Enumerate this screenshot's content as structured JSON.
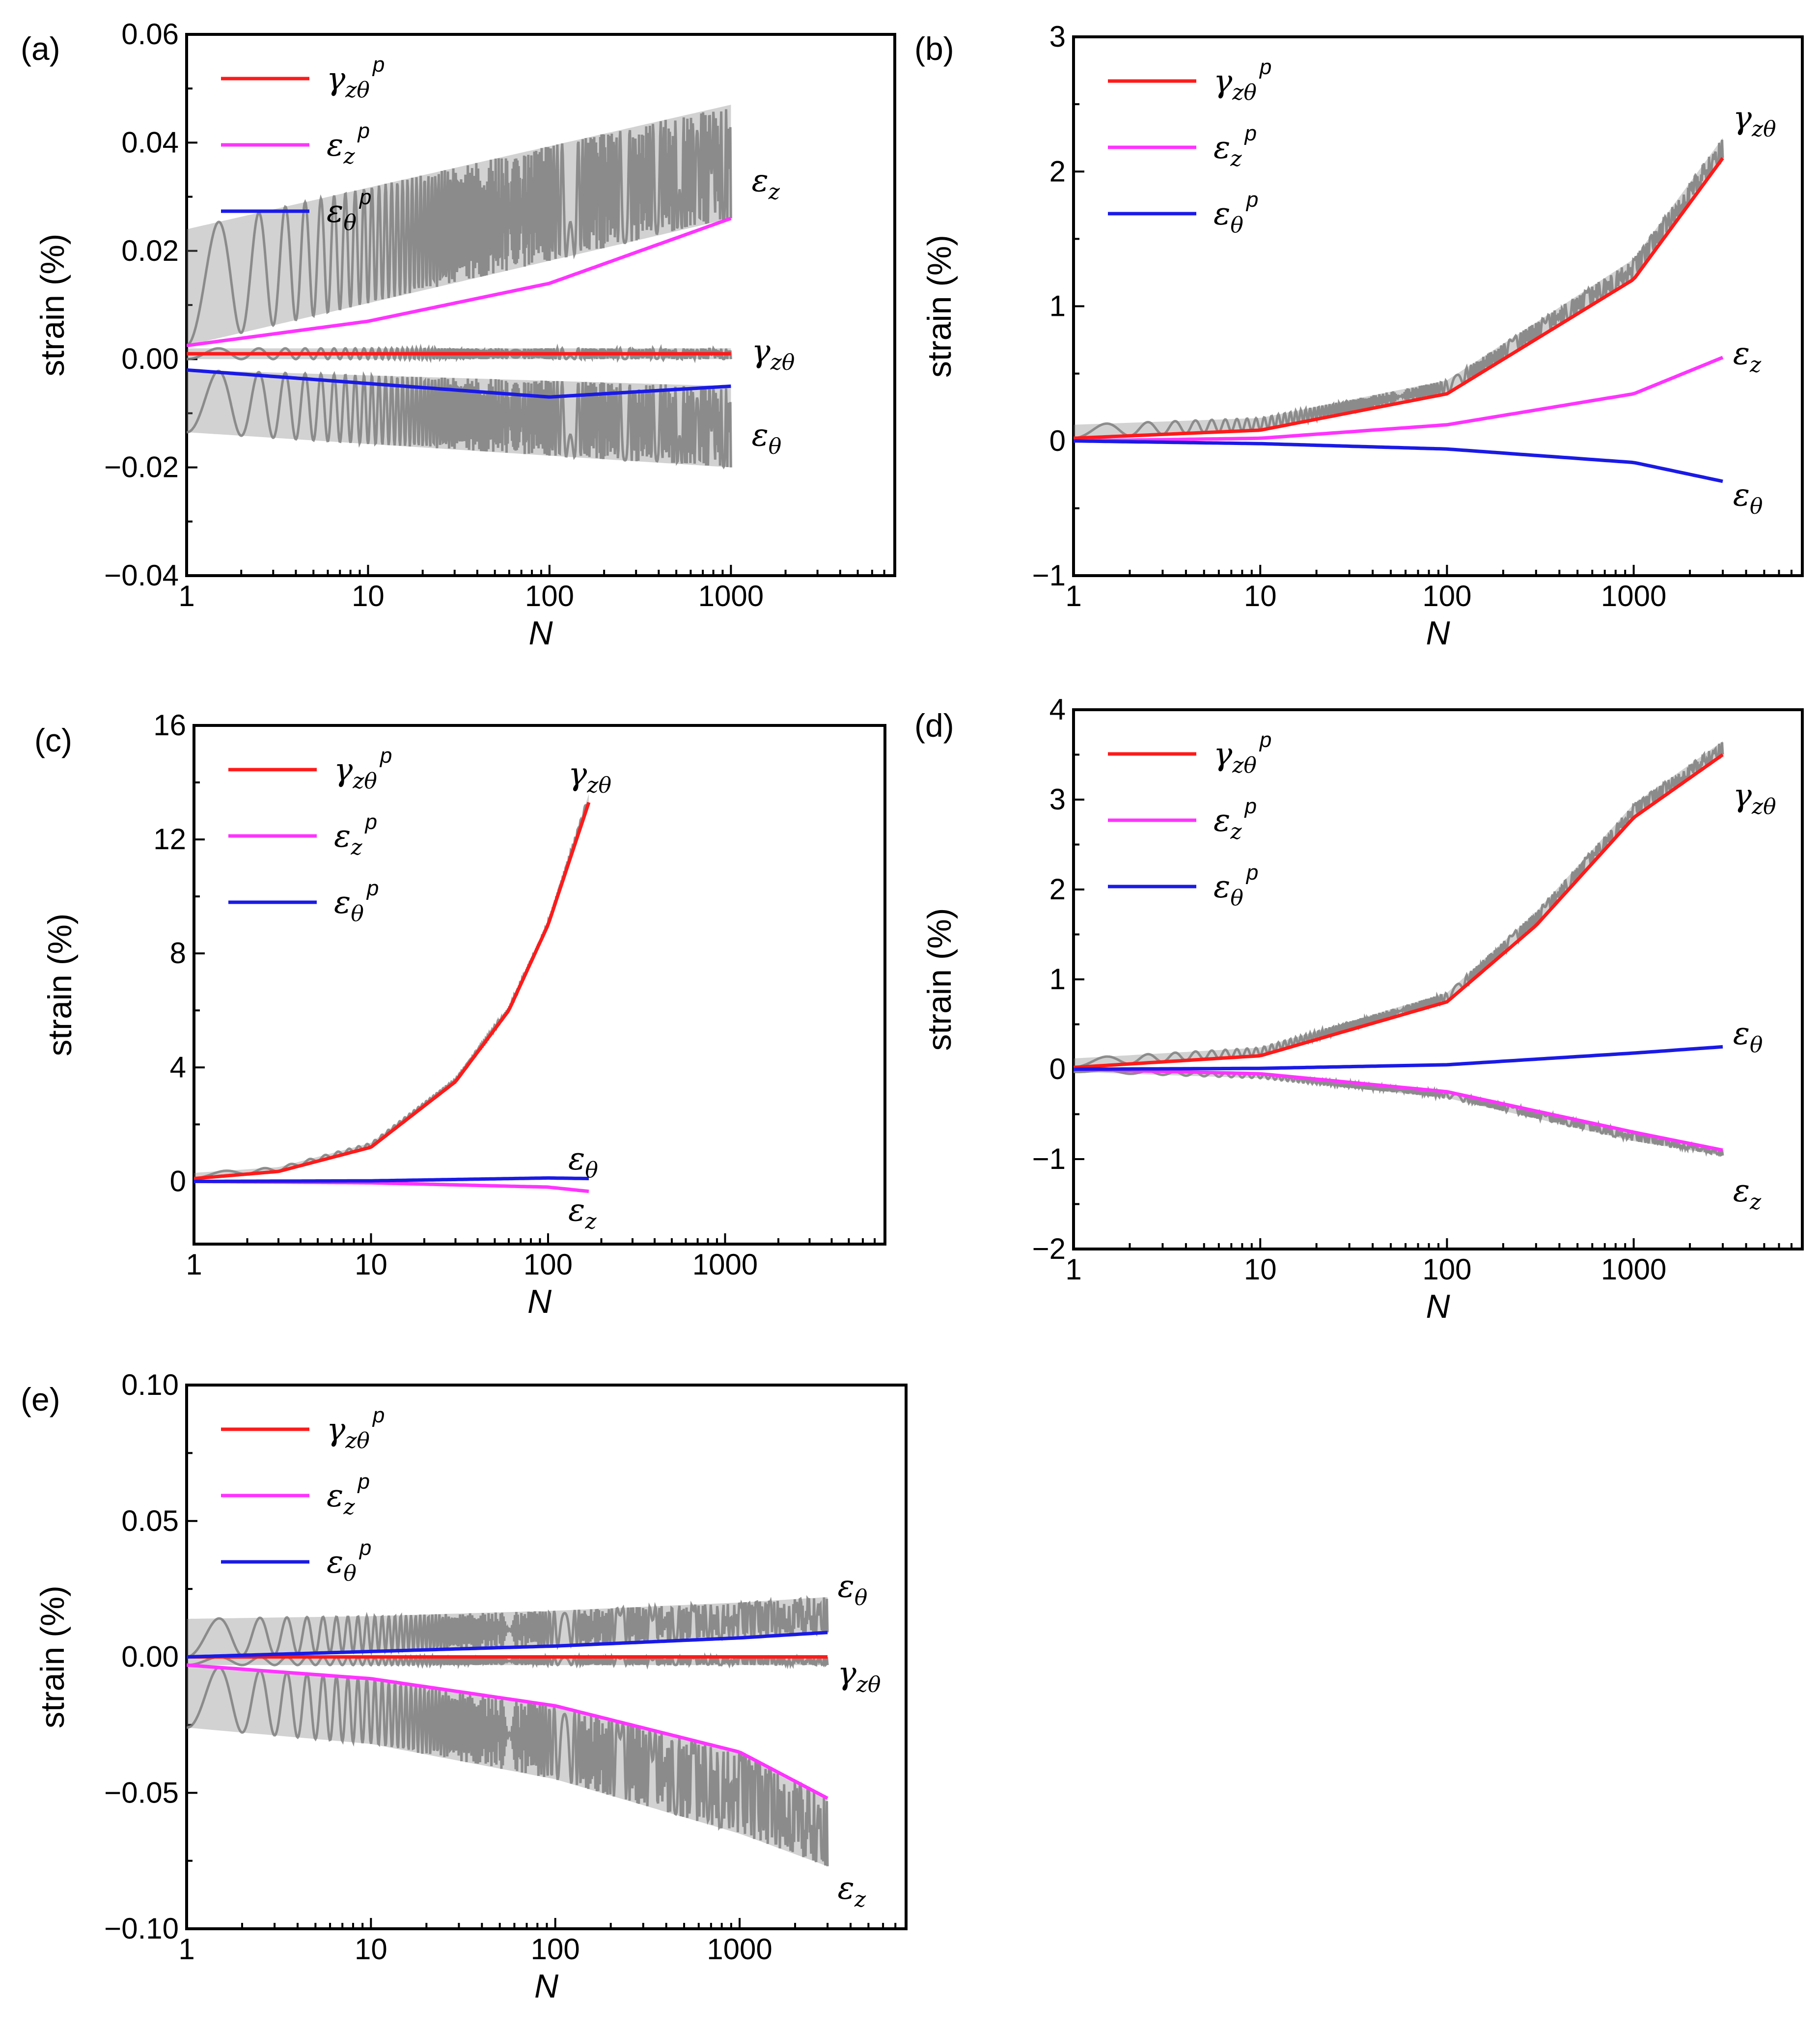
{
  "figure": {
    "panel_labels": [
      "(a)",
      "(b)",
      "(c)",
      "(d)",
      "(e)"
    ]
  },
  "colors": {
    "gamma_p": "#ff1a1a",
    "ez_p": "#ff33ff",
    "et_p": "#1a1ae6",
    "total": "#7f7f7f"
  },
  "chart_data": [
    {
      "type": "line",
      "panel": "(a)",
      "xscale": "log",
      "xlim": [
        1,
        8000
      ],
      "xlabel": "N",
      "ylim": [
        -0.04,
        0.06
      ],
      "ylabel": "strain (%)",
      "yticks": [
        "−0.04",
        "−0.02",
        "0.00",
        "0.02",
        "0.04",
        "0.06"
      ],
      "xticks": [
        "1",
        "10",
        "100",
        "1000"
      ],
      "legend": [
        {
          "sym": "γ",
          "sub": "zθ",
          "sup": "p"
        },
        {
          "sym": "ε",
          "sub": "z",
          "sup": "p"
        },
        {
          "sym": "ε",
          "sub": "θ",
          "sup": "p"
        }
      ],
      "legend_position": "top-left",
      "nmax": 1000,
      "series": [
        {
          "name": "γzθp",
          "x": [
            1,
            10,
            100,
            1000
          ],
          "values": [
            0.001,
            0.001,
            0.001,
            0.001
          ]
        },
        {
          "name": "εzp",
          "x": [
            1,
            10,
            100,
            1000
          ],
          "values": [
            0.0025,
            0.007,
            0.014,
            0.026
          ]
        },
        {
          "name": "εθp",
          "x": [
            1,
            10,
            100,
            1000
          ],
          "values": [
            -0.002,
            -0.0045,
            -0.007,
            -0.005
          ]
        }
      ],
      "envelopes": [
        {
          "name": "εz",
          "x": [
            1,
            1000
          ],
          "upper": [
            0.024,
            0.047
          ],
          "lower": [
            0.0025,
            0.026
          ]
        },
        {
          "name": "εθ",
          "x": [
            1,
            1000
          ],
          "upper": [
            -0.002,
            -0.005
          ],
          "lower": [
            -0.0135,
            -0.02
          ]
        },
        {
          "name": "γzθ",
          "x": [
            1,
            1000
          ],
          "upper": [
            0.002,
            0.002
          ],
          "lower": [
            0.0,
            0.0
          ]
        }
      ],
      "annotations": [
        {
          "sym": "ε",
          "sub": "z",
          "x": 1300,
          "y": 0.033
        },
        {
          "sym": "γ",
          "sub": "zθ",
          "x": 1300,
          "y": 0.0015
        },
        {
          "sym": "ε",
          "sub": "θ",
          "x": 1300,
          "y": -0.014
        }
      ]
    },
    {
      "type": "line",
      "panel": "(b)",
      "xscale": "log",
      "xlim": [
        1,
        8000
      ],
      "xlabel": "N",
      "ylim": [
        -1,
        3
      ],
      "ylabel": "strain (%)",
      "yticks": [
        "−1",
        "0",
        "1",
        "2",
        "3"
      ],
      "xticks": [
        "1",
        "10",
        "100",
        "1000"
      ],
      "legend": [
        {
          "sym": "γ",
          "sub": "zθ",
          "sup": "p"
        },
        {
          "sym": "ε",
          "sub": "z",
          "sup": "p"
        },
        {
          "sym": "ε",
          "sub": "θ",
          "sup": "p"
        }
      ],
      "legend_position": "top-left",
      "nmax": 3000,
      "series": [
        {
          "name": "γzθp",
          "x": [
            1,
            10,
            100,
            1000,
            3000
          ],
          "values": [
            0.02,
            0.08,
            0.35,
            1.2,
            2.1
          ]
        },
        {
          "name": "εzp",
          "x": [
            1,
            10,
            100,
            1000,
            3000
          ],
          "values": [
            0.0,
            0.02,
            0.12,
            0.35,
            0.62
          ]
        },
        {
          "name": "εθp",
          "x": [
            1,
            10,
            100,
            1000,
            3000
          ],
          "values": [
            0.0,
            -0.02,
            -0.06,
            -0.16,
            -0.3
          ]
        }
      ],
      "envelopes": [
        {
          "name": "γzθ",
          "x": [
            1,
            10,
            100,
            1000,
            3000
          ],
          "upper": [
            0.12,
            0.17,
            0.45,
            1.35,
            2.25
          ],
          "lower": [
            0.02,
            0.08,
            0.35,
            1.2,
            2.1
          ]
        }
      ],
      "annotations": [
        {
          "sym": "γ",
          "sub": "zθ",
          "x": 3400,
          "y": 2.4
        },
        {
          "sym": "ε",
          "sub": "z",
          "x": 3400,
          "y": 0.65
        },
        {
          "sym": "ε",
          "sub": "θ",
          "x": 3400,
          "y": -0.4
        }
      ]
    },
    {
      "type": "line",
      "panel": "(c)",
      "xscale": "log",
      "xlim": [
        1,
        8000
      ],
      "xlabel": "N",
      "ylim": [
        -2.2,
        16
      ],
      "ylabel": "strain (%)",
      "yticks": [
        "0",
        "4",
        "8",
        "12",
        "16"
      ],
      "xticks": [
        "1",
        "10",
        "100",
        "1000"
      ],
      "legend": [
        {
          "sym": "γ",
          "sub": "zθ",
          "sup": "p"
        },
        {
          "sym": "ε",
          "sub": "z",
          "sup": "p"
        },
        {
          "sym": "ε",
          "sub": "θ",
          "sup": "p"
        }
      ],
      "legend_position": "top-left",
      "nmax": 170,
      "series": [
        {
          "name": "γzθp",
          "x": [
            1,
            3,
            10,
            30,
            60,
            100,
            170
          ],
          "values": [
            0.1,
            0.35,
            1.2,
            3.5,
            6.0,
            9.0,
            13.3
          ]
        },
        {
          "name": "εzp",
          "x": [
            1,
            10,
            100,
            170
          ],
          "values": [
            0.0,
            -0.05,
            -0.2,
            -0.35
          ]
        },
        {
          "name": "εθp",
          "x": [
            1,
            10,
            100,
            170
          ],
          "values": [
            0.0,
            0.02,
            0.12,
            0.1
          ]
        }
      ],
      "envelopes": [
        {
          "name": "γzθ",
          "x": [
            1,
            3,
            10,
            30,
            60,
            100,
            170
          ],
          "upper": [
            0.3,
            0.5,
            1.35,
            3.6,
            6.1,
            9.1,
            13.6
          ],
          "lower": [
            0.1,
            0.35,
            1.2,
            3.5,
            6.0,
            9.0,
            13.3
          ]
        }
      ],
      "annotations": [
        {
          "sym": "γ",
          "sub": "zθ",
          "x": 130,
          "y": 14.3
        },
        {
          "sym": "ε",
          "sub": "θ",
          "x": 130,
          "y": 0.8
        },
        {
          "sym": "ε",
          "sub": "z",
          "x": 130,
          "y": -1.0
        }
      ]
    },
    {
      "type": "line",
      "panel": "(d)",
      "xscale": "log",
      "xlim": [
        1,
        8000
      ],
      "xlabel": "N",
      "ylim": [
        -2,
        4
      ],
      "ylabel": "strain (%)",
      "yticks": [
        "−2",
        "−1",
        "0",
        "1",
        "2",
        "3",
        "4"
      ],
      "xticks": [
        "1",
        "10",
        "100",
        "1000"
      ],
      "legend": [
        {
          "sym": "γ",
          "sub": "zθ",
          "sup": "p"
        },
        {
          "sym": "ε",
          "sub": "z",
          "sup": "p"
        },
        {
          "sym": "ε",
          "sub": "θ",
          "sup": "p"
        }
      ],
      "legend_position": "top-left",
      "nmax": 3000,
      "series": [
        {
          "name": "γzθp",
          "x": [
            1,
            10,
            100,
            300,
            1000,
            3000
          ],
          "values": [
            0.02,
            0.15,
            0.75,
            1.6,
            2.8,
            3.5
          ]
        },
        {
          "name": "εzp",
          "x": [
            1,
            10,
            100,
            1000,
            3000
          ],
          "values": [
            0.0,
            -0.05,
            -0.25,
            -0.7,
            -0.9
          ]
        },
        {
          "name": "εθp",
          "x": [
            1,
            10,
            100,
            1000,
            3000
          ],
          "values": [
            0.0,
            0.01,
            0.05,
            0.18,
            0.25
          ]
        }
      ],
      "envelopes": [
        {
          "name": "γzθ",
          "x": [
            1,
            10,
            100,
            300,
            1000,
            3000
          ],
          "upper": [
            0.12,
            0.24,
            0.85,
            1.75,
            2.95,
            3.65
          ],
          "lower": [
            0.02,
            0.15,
            0.75,
            1.6,
            2.8,
            3.5
          ]
        },
        {
          "name": "εz",
          "x": [
            1,
            10,
            100,
            1000,
            3000
          ],
          "upper": [
            0.0,
            -0.05,
            -0.25,
            -0.7,
            -0.9
          ],
          "lower": [
            -0.03,
            -0.1,
            -0.32,
            -0.8,
            -0.96
          ]
        }
      ],
      "annotations": [
        {
          "sym": "γ",
          "sub": "zθ",
          "x": 3400,
          "y": 3.05
        },
        {
          "sym": "ε",
          "sub": "θ",
          "x": 3400,
          "y": 0.4
        },
        {
          "sym": "ε",
          "sub": "z",
          "x": 3400,
          "y": -1.35
        }
      ]
    },
    {
      "type": "line",
      "panel": "(e)",
      "xscale": "log",
      "xlim": [
        1,
        8000
      ],
      "xlabel": "N",
      "ylim": [
        -0.1,
        0.1
      ],
      "ylabel": "strain (%)",
      "yticks": [
        "−0.10",
        "−0.05",
        "0.00",
        "0.05",
        "0.10"
      ],
      "xticks": [
        "1",
        "10",
        "100",
        "1000"
      ],
      "legend": [
        {
          "sym": "γ",
          "sub": "zθ",
          "sup": "p"
        },
        {
          "sym": "ε",
          "sub": "z",
          "sup": "p"
        },
        {
          "sym": "ε",
          "sub": "θ",
          "sup": "p"
        }
      ],
      "legend_position": "top-left",
      "nmax": 3000,
      "series": [
        {
          "name": "γzθp",
          "x": [
            1,
            10,
            100,
            1000,
            3000
          ],
          "values": [
            0.0,
            0.0,
            0.0,
            0.0,
            0.0
          ]
        },
        {
          "name": "εzp",
          "x": [
            1,
            10,
            100,
            1000,
            3000
          ],
          "values": [
            -0.003,
            -0.008,
            -0.018,
            -0.035,
            -0.052
          ]
        },
        {
          "name": "εθp",
          "x": [
            1,
            10,
            100,
            1000,
            3000
          ],
          "values": [
            0.0,
            0.002,
            0.004,
            0.007,
            0.009
          ]
        }
      ],
      "envelopes": [
        {
          "name": "εθ",
          "x": [
            1,
            10,
            100,
            1000,
            3000
          ],
          "upper": [
            0.014,
            0.015,
            0.017,
            0.02,
            0.022
          ],
          "lower": [
            0.0,
            0.002,
            0.004,
            0.007,
            0.009
          ]
        },
        {
          "name": "εz",
          "x": [
            1,
            10,
            100,
            1000,
            3000
          ],
          "upper": [
            -0.003,
            -0.008,
            -0.018,
            -0.035,
            -0.052
          ],
          "lower": [
            -0.026,
            -0.032,
            -0.045,
            -0.065,
            -0.077
          ]
        },
        {
          "name": "γzθ",
          "x": [
            1,
            3000
          ],
          "upper": [
            0.0,
            0.0
          ],
          "lower": [
            -0.003,
            -0.003
          ]
        }
      ],
      "annotations": [
        {
          "sym": "ε",
          "sub": "θ",
          "x": 3400,
          "y": 0.026
        },
        {
          "sym": "γ",
          "sub": "zθ",
          "x": 3400,
          "y": -0.006
        },
        {
          "sym": "ε",
          "sub": "z",
          "x": 3400,
          "y": -0.085
        }
      ]
    }
  ]
}
